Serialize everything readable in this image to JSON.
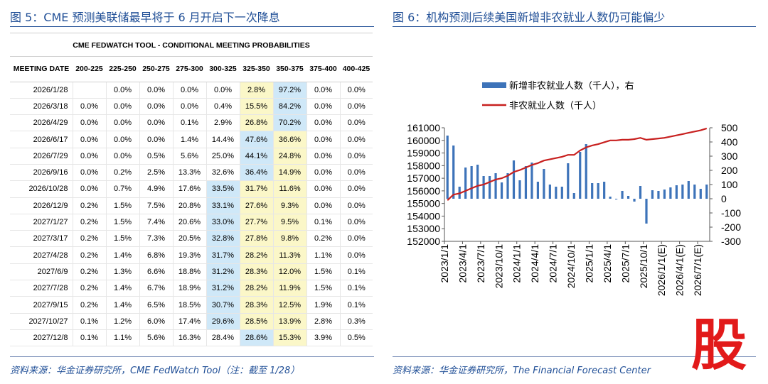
{
  "left": {
    "figure_title": "图 5：CME 预测美联储最早将于 6 月开启下一次降息",
    "source": "资料来源：华金证券研究所，CME FedWatch Tool（注：截至 1/28）"
  },
  "right": {
    "figure_title": "图 6：机构预测后续美国新增非农就业人数仍可能偏少",
    "source": "资料来源：华金证券研究所，The Financial Forecast Center"
  },
  "watermark": "股",
  "chart_data": [
    {
      "type": "table",
      "title": "CME FEDWATCH TOOL - CONDITIONAL MEETING PROBABILITIES",
      "columns": [
        "MEETING DATE",
        "200-225",
        "225-250",
        "250-275",
        "275-300",
        "300-325",
        "325-350",
        "350-375",
        "375-400",
        "400-425"
      ],
      "rows": [
        {
          "date": "2026/1/28",
          "values": [
            "",
            "0.0%",
            "0.0%",
            "0.0%",
            "0.0%",
            "2.8%",
            "97.2%",
            "0.0%",
            "0.0%"
          ],
          "highlight": 6
        },
        {
          "date": "2026/3/18",
          "values": [
            "0.0%",
            "0.0%",
            "0.0%",
            "0.0%",
            "0.4%",
            "15.5%",
            "84.2%",
            "0.0%",
            "0.0%"
          ],
          "highlight": 6
        },
        {
          "date": "2026/4/29",
          "values": [
            "0.0%",
            "0.0%",
            "0.0%",
            "0.1%",
            "2.9%",
            "26.8%",
            "70.2%",
            "0.0%",
            "0.0%"
          ],
          "highlight": 6
        },
        {
          "date": "2026/6/17",
          "values": [
            "0.0%",
            "0.0%",
            "0.0%",
            "1.4%",
            "14.4%",
            "47.6%",
            "36.6%",
            "0.0%",
            "0.0%"
          ],
          "highlight": 5
        },
        {
          "date": "2026/7/29",
          "values": [
            "0.0%",
            "0.0%",
            "0.5%",
            "5.6%",
            "25.0%",
            "44.1%",
            "24.8%",
            "0.0%",
            "0.0%"
          ],
          "highlight": 5
        },
        {
          "date": "2026/9/16",
          "values": [
            "0.0%",
            "0.2%",
            "2.5%",
            "13.3%",
            "32.6%",
            "36.4%",
            "14.9%",
            "0.0%",
            "0.0%"
          ],
          "highlight": 5
        },
        {
          "date": "2026/10/28",
          "values": [
            "0.0%",
            "0.7%",
            "4.9%",
            "17.6%",
            "33.5%",
            "31.7%",
            "11.6%",
            "0.0%",
            "0.0%"
          ],
          "highlight": 4
        },
        {
          "date": "2026/12/9",
          "values": [
            "0.2%",
            "1.5%",
            "7.5%",
            "20.8%",
            "33.1%",
            "27.6%",
            "9.3%",
            "0.0%",
            "0.0%"
          ],
          "highlight": 4
        },
        {
          "date": "2027/1/27",
          "values": [
            "0.2%",
            "1.5%",
            "7.4%",
            "20.6%",
            "33.0%",
            "27.7%",
            "9.5%",
            "0.1%",
            "0.0%"
          ],
          "highlight": 4
        },
        {
          "date": "2027/3/17",
          "values": [
            "0.2%",
            "1.5%",
            "7.3%",
            "20.5%",
            "32.8%",
            "27.8%",
            "9.8%",
            "0.2%",
            "0.0%"
          ],
          "highlight": 4
        },
        {
          "date": "2027/4/28",
          "values": [
            "0.2%",
            "1.4%",
            "6.8%",
            "19.3%",
            "31.7%",
            "28.2%",
            "11.3%",
            "1.1%",
            "0.0%"
          ],
          "highlight": 4
        },
        {
          "date": "2027/6/9",
          "values": [
            "0.2%",
            "1.3%",
            "6.6%",
            "18.8%",
            "31.2%",
            "28.3%",
            "12.0%",
            "1.5%",
            "0.1%"
          ],
          "highlight": 4
        },
        {
          "date": "2027/7/28",
          "values": [
            "0.2%",
            "1.4%",
            "6.7%",
            "18.9%",
            "31.2%",
            "28.2%",
            "11.9%",
            "1.5%",
            "0.1%"
          ],
          "highlight": 4
        },
        {
          "date": "2027/9/15",
          "values": [
            "0.2%",
            "1.4%",
            "6.5%",
            "18.5%",
            "30.7%",
            "28.3%",
            "12.5%",
            "1.9%",
            "0.1%"
          ],
          "highlight": 4
        },
        {
          "date": "2027/10/27",
          "values": [
            "0.1%",
            "1.2%",
            "6.0%",
            "17.4%",
            "29.6%",
            "28.5%",
            "13.9%",
            "2.8%",
            "0.3%"
          ],
          "highlight": 4
        },
        {
          "date": "2027/12/8",
          "values": [
            "0.1%",
            "1.1%",
            "5.6%",
            "16.3%",
            "28.4%",
            "28.6%",
            "15.3%",
            "3.9%",
            "0.5%"
          ],
          "highlight": 5
        }
      ]
    },
    {
      "type": "bar",
      "legend": [
        {
          "name": "新增非农就业人数（千人），右",
          "color": "#3d73b9",
          "kind": "bar"
        },
        {
          "name": "非农就业人数（千人）",
          "color": "#c8201f",
          "kind": "line"
        }
      ],
      "x_tick_labels": [
        "2023/1/1",
        "2023/4/1",
        "2023/7/1",
        "2023/10/1",
        "2024/1/1",
        "2024/4/1",
        "2024/7/1",
        "2024/10/1",
        "2025/1/1",
        "2025/4/1",
        "2025/7/1",
        "2025/10/1",
        "2026/1/1(E)",
        "2026/4/1(E)",
        "2026/7/1(E)"
      ],
      "y_left": {
        "min": 152000,
        "max": 161000,
        "step": 1000
      },
      "y_right": {
        "min": -300,
        "max": 500,
        "step": 100
      },
      "months": [
        "2023/1",
        "2023/2",
        "2023/3",
        "2023/4",
        "2023/5",
        "2023/6",
        "2023/7",
        "2023/8",
        "2023/9",
        "2023/10",
        "2023/11",
        "2023/12",
        "2024/1",
        "2024/2",
        "2024/3",
        "2024/4",
        "2024/5",
        "2024/6",
        "2024/7",
        "2024/8",
        "2024/9",
        "2024/10",
        "2024/11",
        "2024/12",
        "2025/1",
        "2025/2",
        "2025/3",
        "2025/4",
        "2025/5",
        "2025/6",
        "2025/7",
        "2025/8",
        "2025/9",
        "2025/10",
        "2025/11",
        "2025/12",
        "2026/1",
        "2026/2",
        "2026/3",
        "2026/4",
        "2026/5",
        "2026/6",
        "2026/7",
        "2026/8"
      ],
      "bar_values": [
        445,
        375,
        85,
        220,
        230,
        240,
        160,
        160,
        180,
        115,
        180,
        270,
        130,
        230,
        255,
        120,
        210,
        100,
        85,
        85,
        250,
        40,
        330,
        385,
        110,
        110,
        120,
        15,
        -5,
        55,
        20,
        -20,
        90,
        -175,
        60,
        55,
        65,
        80,
        95,
        100,
        125,
        100,
        70,
        100
      ],
      "line_values": [
        155250,
        155700,
        155800,
        156000,
        156200,
        156400,
        156500,
        156700,
        156900,
        157000,
        157200,
        157500,
        157650,
        157850,
        158050,
        158200,
        158400,
        158500,
        158600,
        158700,
        158850,
        158850,
        159200,
        159450,
        159600,
        159700,
        159850,
        160000,
        160000,
        160050,
        160050,
        160100,
        160200,
        160050,
        160100,
        160150,
        160200,
        160300,
        160400,
        160500,
        160600,
        160700,
        160800,
        160950
      ]
    }
  ]
}
